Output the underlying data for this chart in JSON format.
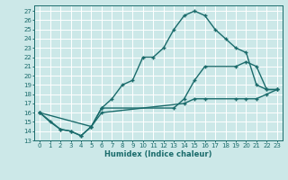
{
  "xlabel": "Humidex (Indice chaleur)",
  "bg_color": "#cce8e8",
  "grid_color": "#ffffff",
  "line_color": "#1a6b6b",
  "xlim": [
    -0.5,
    23.5
  ],
  "ylim": [
    13,
    27.6
  ],
  "yticks": [
    13,
    14,
    15,
    16,
    17,
    18,
    19,
    20,
    21,
    22,
    23,
    24,
    25,
    26,
    27
  ],
  "xticks": [
    0,
    1,
    2,
    3,
    4,
    5,
    6,
    7,
    8,
    9,
    10,
    11,
    12,
    13,
    14,
    15,
    16,
    17,
    18,
    19,
    20,
    21,
    22,
    23
  ],
  "line1_x": [
    0,
    1,
    2,
    3,
    4,
    5,
    6,
    7,
    8,
    9,
    10,
    11,
    12,
    13,
    14,
    15,
    16,
    17,
    18,
    19,
    20,
    21,
    22,
    23
  ],
  "line1_y": [
    16,
    15,
    14.2,
    14,
    13.5,
    14.5,
    16.5,
    17.5,
    19,
    19.5,
    22,
    22,
    23,
    25,
    26.5,
    27,
    26.5,
    25,
    24,
    23,
    22.5,
    19,
    18.5,
    18.5
  ],
  "line2_x": [
    0,
    2,
    3,
    4,
    5,
    6,
    13,
    14,
    15,
    16,
    19,
    20,
    21,
    22,
    23
  ],
  "line2_y": [
    16,
    14.2,
    14,
    13.5,
    14.5,
    16.5,
    16.5,
    17.5,
    19.5,
    21,
    21,
    21.5,
    21,
    18.5,
    18.5
  ],
  "line3_x": [
    0,
    5,
    6,
    14,
    15,
    16,
    19,
    20,
    21,
    22,
    23
  ],
  "line3_y": [
    16,
    14.5,
    16,
    17,
    17.5,
    17.5,
    17.5,
    17.5,
    17.5,
    18,
    18.5
  ]
}
